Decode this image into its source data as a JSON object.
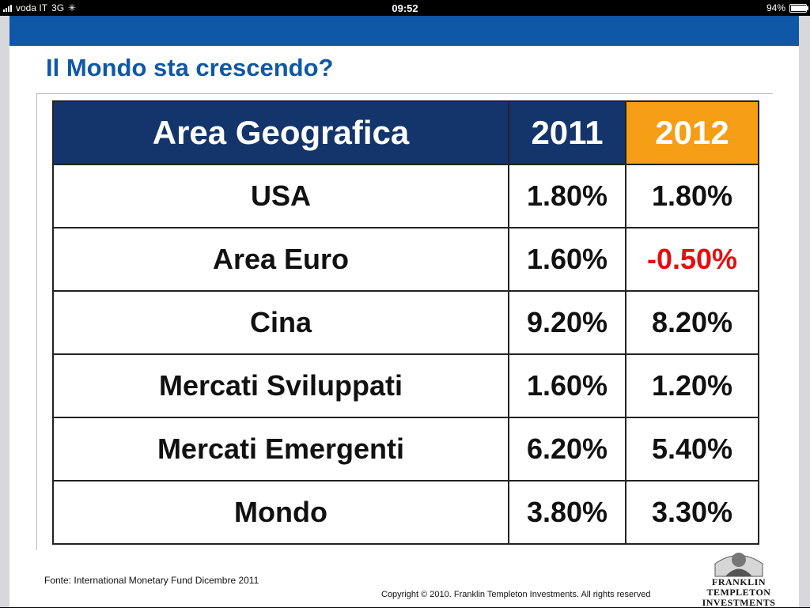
{
  "status": {
    "carrier": "voda IT",
    "network": "3G",
    "time": "09:52",
    "battery": "94%",
    "battery_fraction": 0.94
  },
  "slide": {
    "title": "Il Mondo sta crescendo?",
    "table": {
      "headers": [
        "Area Geografica",
        "2011",
        "2012"
      ],
      "rows": [
        {
          "area": "USA",
          "y2011": "1.80%",
          "y2012": "1.80%"
        },
        {
          "area": "Area Euro",
          "y2011": "1.60%",
          "y2012": "-0.50%"
        },
        {
          "area": "Cina",
          "y2011": "9.20%",
          "y2012": "8.20%"
        },
        {
          "area": "Mercati Sviluppati",
          "y2011": "1.60%",
          "y2012": "1.20%"
        },
        {
          "area": "Mercati Emergenti",
          "y2011": "6.20%",
          "y2012": "5.40%"
        },
        {
          "area": "Mondo",
          "y2011": "3.80%",
          "y2012": "3.30%"
        }
      ]
    },
    "source": "Fonte: International Monetary Fund Dicembre 2011",
    "copyright": "Copyright © 2010. Franklin Templeton Investments. All rights reserved",
    "logo": {
      "line1": "FRANKLIN TEMPLETON",
      "line2": "INVESTMENTS"
    }
  },
  "colors": {
    "brand_blue": "#0f58a7",
    "header_navy": "#13356c",
    "highlight_orange": "#f59d14",
    "negative_red": "#e01010"
  }
}
